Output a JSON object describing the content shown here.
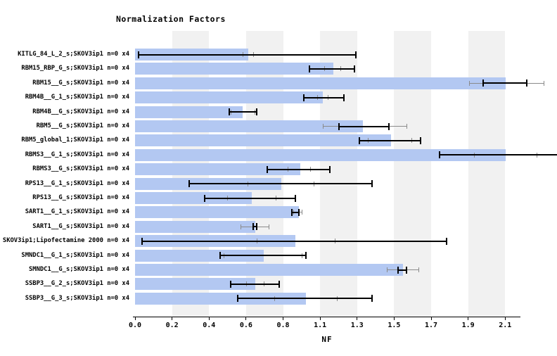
{
  "title": "Normalization Factors",
  "xlabel": "NF",
  "colors": {
    "bar": "#b3c8f2",
    "band": "#f1f1f1",
    "whisker_black": "#000000",
    "whisker_gray": "#8a8a8a"
  },
  "chart_data": {
    "type": "bar",
    "orientation": "horizontal",
    "title": "Normalization Factors",
    "xlabel": "NF",
    "x_tick_labels": [
      "0.0",
      "0.2",
      "0.4",
      "0.6",
      "0.8",
      "1.1",
      "1.3",
      "1.5",
      "1.7",
      "1.9",
      "2.1"
    ],
    "xlim": [
      0,
      2.42
    ],
    "grid": "alternating-vertical-bands",
    "categories": [
      "KITLG_84_L_2_s;SKOV3ip1 n=0 x4",
      "RBM15_RBP_G_s;SKOV3ip1 n=0 x4",
      "RBM15__G_s;SKOV3ip1 n=0 x4",
      "RBM4B__G_1_s;SKOV3ip1 n=0 x4",
      "RBM4B__G_s;SKOV3ip1 n=0 x4",
      "RBM5__G_s;SKOV3ip1 n=0 x4",
      "RBM5_global_1;SKOV3ip1 n=0 x4",
      "RBMS3__G_1_s;SKOV3ip1 n=0 x4",
      "RBMS3__G_s;SKOV3ip1 n=0 x4",
      "RPS13__G_1_s;SKOV3ip1 n=0 x4",
      "RPS13__G_s;SKOV3ip1 n=0 x4",
      "SART1__G_1_s;SKOV3ip1 n=0 x4",
      "SART1__G_s;SKOV3ip1 n=0 x4",
      "SKOV3ip1;Lipofectamine 2000 n=0 x4",
      "SMNDC1__G_1_s;SKOV3ip1 n=0 x4",
      "SMNDC1__G_s;SKOV3ip1 n=0 x4",
      "SSBP3__G_2_s;SKOV3ip1 n=0 x4",
      "SSBP3__G_3_s;SKOV3ip1 n=0 x4"
    ],
    "values": [
      0.65,
      1.14,
      2.13,
      1.08,
      0.62,
      1.31,
      1.47,
      2.13,
      0.95,
      0.84,
      0.67,
      0.94,
      0.69,
      0.92,
      0.74,
      1.54,
      0.69,
      0.98
    ],
    "error_bars_black": [
      {
        "lo": 0.02,
        "hi": 1.27
      },
      {
        "lo": 1.0,
        "hi": 1.26
      },
      {
        "lo": 2.0,
        "hi": 2.25
      },
      {
        "lo": 0.97,
        "hi": 1.2
      },
      {
        "lo": 0.54,
        "hi": 0.7
      },
      {
        "lo": 1.17,
        "hi": 1.46
      },
      {
        "lo": 1.29,
        "hi": 1.64
      },
      {
        "lo": 1.75,
        "hi": 2.46,
        "clipped_right": true
      },
      {
        "lo": 0.76,
        "hi": 1.12
      },
      {
        "lo": 0.31,
        "hi": 1.36
      },
      {
        "lo": 0.4,
        "hi": 0.92
      },
      {
        "lo": 0.9,
        "hi": 0.94
      },
      {
        "lo": 0.68,
        "hi": 0.7
      },
      {
        "lo": 0.04,
        "hi": 1.79
      },
      {
        "lo": 0.49,
        "hi": 0.98
      },
      {
        "lo": 1.51,
        "hi": 1.56
      },
      {
        "lo": 0.55,
        "hi": 0.83
      },
      {
        "lo": 0.59,
        "hi": 1.36
      }
    ],
    "error_bars_gray": [
      {
        "lo": 0.62,
        "hi": 0.68
      },
      {
        "lo": 1.09,
        "hi": 1.18
      },
      {
        "lo": 1.92,
        "hi": 2.35
      },
      {
        "lo": 1.05,
        "hi": 1.11
      },
      {
        "lo": 0.55,
        "hi": 0.69
      },
      {
        "lo": 1.08,
        "hi": 1.56
      },
      {
        "lo": 1.34,
        "hi": 1.59
      },
      {
        "lo": 1.95,
        "hi": 2.31
      },
      {
        "lo": 0.88,
        "hi": 1.01
      },
      {
        "lo": 0.65,
        "hi": 1.03
      },
      {
        "lo": 0.53,
        "hi": 0.81
      },
      {
        "lo": 0.91,
        "hi": 0.96
      },
      {
        "lo": 0.61,
        "hi": 0.77
      },
      {
        "lo": 0.7,
        "hi": 1.15
      },
      {
        "lo": 0.51,
        "hi": 0.96
      },
      {
        "lo": 1.45,
        "hi": 1.63
      },
      {
        "lo": 0.64,
        "hi": 0.74
      },
      {
        "lo": 0.8,
        "hi": 1.16
      }
    ]
  }
}
